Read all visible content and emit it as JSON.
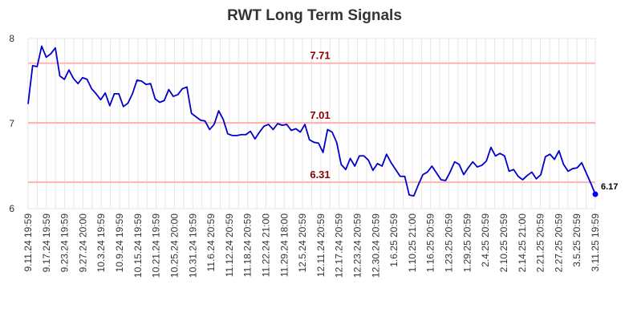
{
  "chart_data": {
    "type": "line",
    "title": "RWT Long Term Signals",
    "xlabel": "",
    "ylabel": "",
    "ylim": [
      6,
      8
    ],
    "y_ticks": [
      "6",
      "7",
      "8"
    ],
    "x_tick_labels": [
      "9.11.24 19:59",
      "9.17.24 19:59",
      "9.23.24 19:59",
      "9.27.24 20:00",
      "10.3.24 19:59",
      "10.9.24 19:59",
      "10.15.24 19:59",
      "10.21.24 19:59",
      "10.25.24 20:00",
      "10.31.24 19:59",
      "11.6.24 20:59",
      "11.12.24 20:59",
      "11.18.24 20:59",
      "11.22.24 21:00",
      "11.29.24 18:00",
      "12.5.24 20:59",
      "12.11.24 20:59",
      "12.17.24 20:59",
      "12.23.24 20:59",
      "12.30.24 20:59",
      "1.6.25 20:59",
      "1.10.25 21:00",
      "1.16.25 20:59",
      "1.23.25 20:59",
      "1.29.25 20:59",
      "2.4.25 20:59",
      "2.10.25 20:59",
      "2.14.25 21:00",
      "2.21.25 20:59",
      "2.27.25 20:59",
      "3.5.25 20:59",
      "3.11.25 19:59"
    ],
    "grid": true,
    "reference_lines": [
      {
        "value": 7.71,
        "label": "7.71"
      },
      {
        "value": 7.01,
        "label": "7.01"
      },
      {
        "value": 6.31,
        "label": "6.31"
      }
    ],
    "last_value_label": "6.17",
    "colors": {
      "line": "#0000cc",
      "reference": "#ffb3b3",
      "reference_label": "#8b0000",
      "grid": "#e6e6e6",
      "marker": "#0000ff"
    },
    "series": [
      {
        "values": [
          7.23,
          7.68,
          7.67,
          7.91,
          7.78,
          7.82,
          7.89,
          7.56,
          7.52,
          7.63,
          7.53,
          7.47,
          7.54,
          7.52,
          7.41,
          7.35,
          7.28,
          7.36,
          7.21,
          7.35,
          7.35,
          7.2,
          7.24,
          7.35,
          7.51,
          7.5,
          7.46,
          7.47,
          7.29,
          7.25,
          7.27,
          7.4,
          7.32,
          7.34,
          7.41,
          7.43,
          7.12,
          7.08,
          7.04,
          7.03,
          6.93,
          6.99,
          7.15,
          7.05,
          6.88,
          6.86,
          6.86,
          6.87,
          6.87,
          6.91,
          6.82,
          6.9,
          6.97,
          6.99,
          6.93,
          7.0,
          6.98,
          6.99,
          6.92,
          6.94,
          6.9,
          6.99,
          6.81,
          6.78,
          6.77,
          6.66,
          6.93,
          6.9,
          6.78,
          6.52,
          6.46,
          6.59,
          6.5,
          6.62,
          6.62,
          6.57,
          6.45,
          6.53,
          6.5,
          6.64,
          6.54,
          6.46,
          6.38,
          6.38,
          6.16,
          6.15,
          6.28,
          6.4,
          6.43,
          6.5,
          6.42,
          6.34,
          6.33,
          6.43,
          6.55,
          6.52,
          6.4,
          6.48,
          6.55,
          6.49,
          6.51,
          6.56,
          6.72,
          6.62,
          6.65,
          6.62,
          6.44,
          6.46,
          6.38,
          6.34,
          6.39,
          6.43,
          6.35,
          6.4,
          6.61,
          6.64,
          6.58,
          6.68,
          6.52,
          6.44,
          6.47,
          6.48,
          6.54,
          6.42,
          6.3,
          6.17
        ]
      }
    ]
  }
}
